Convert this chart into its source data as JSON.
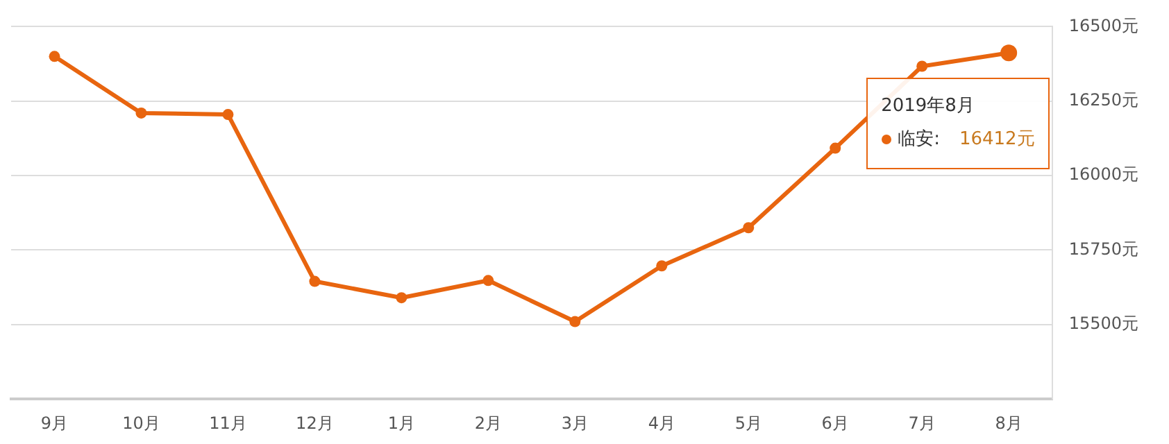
{
  "chart_data": {
    "type": "line",
    "categories": [
      "9月",
      "10月",
      "11月",
      "12月",
      "1月",
      "2月",
      "3月",
      "4月",
      "5月",
      "6月",
      "7月",
      "8月"
    ],
    "series": [
      {
        "name": "临安:",
        "color": "#e8650f",
        "values": [
          16400,
          16210,
          16205,
          15645,
          15590,
          15648,
          15510,
          15697,
          15825,
          16092,
          16367,
          16412
        ]
      }
    ],
    "annotations": [
      "2019年8月",
      "16412元"
    ],
    "ylim": [
      15250,
      16500
    ],
    "yticks": [
      {
        "value": 15500,
        "label": "15500元"
      },
      {
        "value": 15750,
        "label": "15750元"
      },
      {
        "value": 16000,
        "label": "16000元"
      },
      {
        "value": 16250,
        "label": "16250元"
      },
      {
        "value": 16500,
        "label": "16500元"
      }
    ],
    "grid": "y",
    "legend": "top right",
    "marker": "circle",
    "line_style": "solid"
  }
}
